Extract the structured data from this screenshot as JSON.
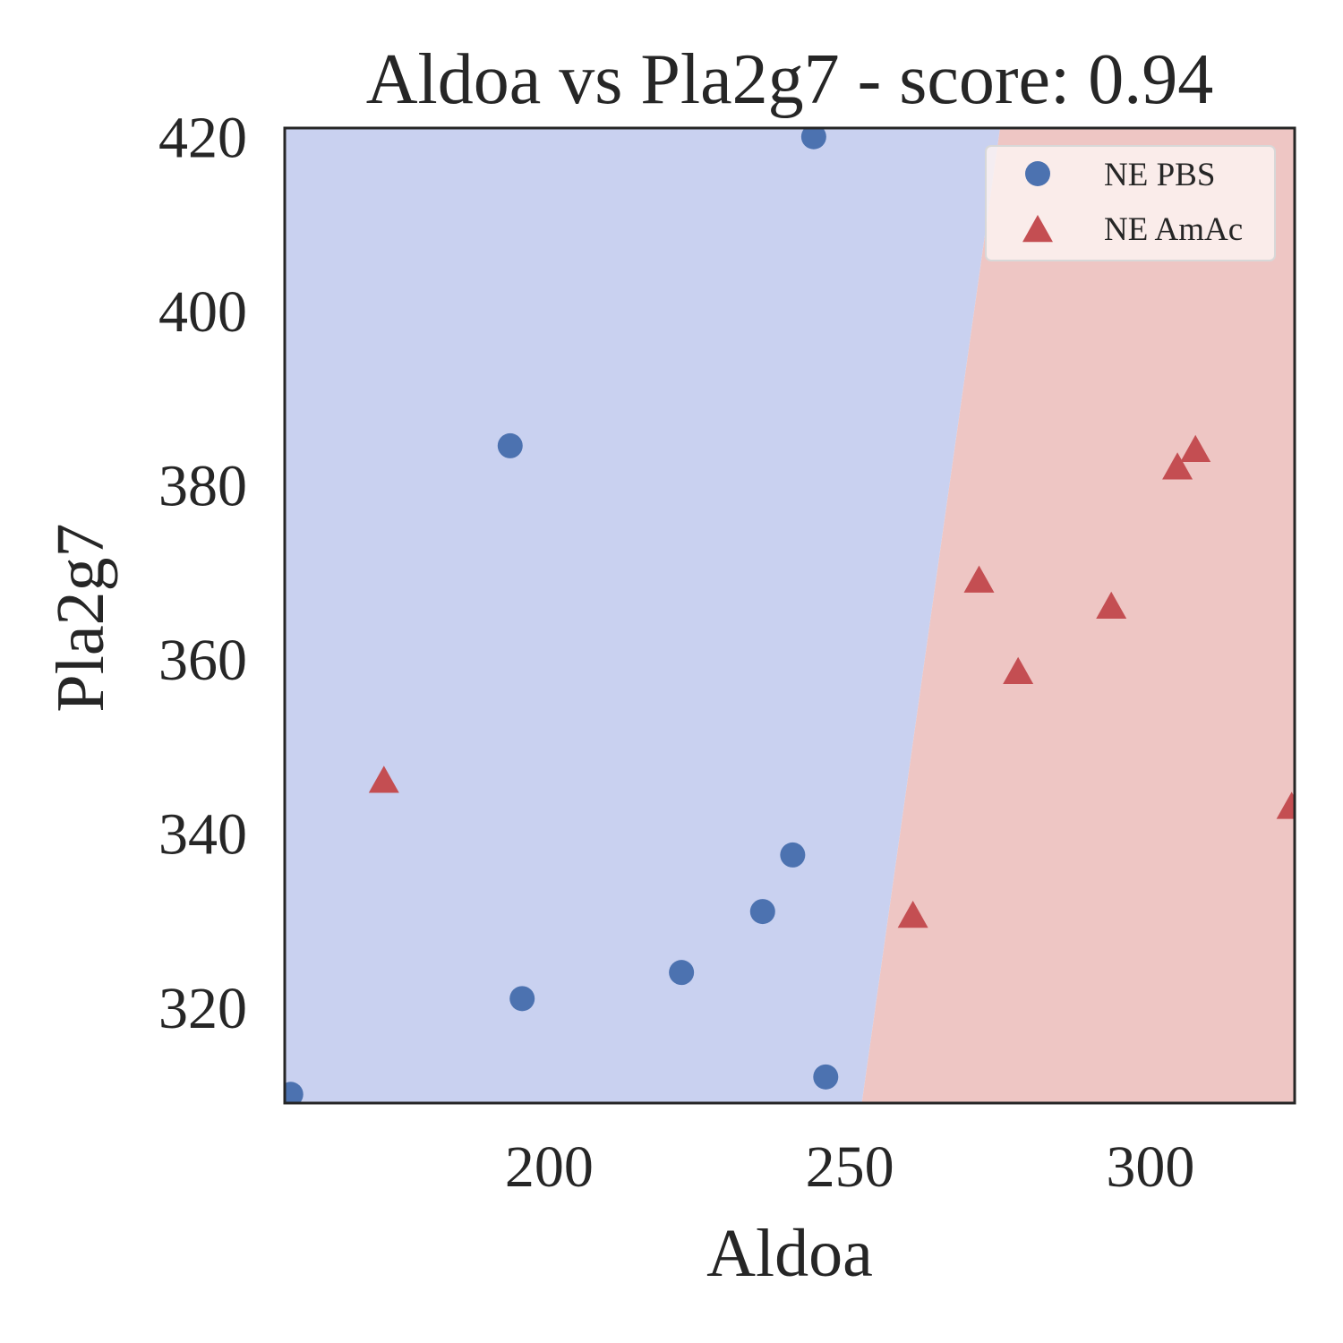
{
  "chart_data": {
    "type": "scatter",
    "title": "Aldoa vs Pla2g7 - score: 0.94",
    "xlabel": "Aldoa",
    "ylabel": "Pla2g7",
    "xlim": [
      156,
      324
    ],
    "ylim": [
      309,
      421
    ],
    "xticks": [
      200,
      250,
      300
    ],
    "yticks": [
      320,
      340,
      360,
      380,
      400,
      420
    ],
    "grid": false,
    "legend_position": "top-right",
    "decision_regions": [
      {
        "class": "NE PBS",
        "color": "#c9d1f0"
      },
      {
        "class": "NE AmAc",
        "color": "#eec6c4"
      }
    ],
    "decision_boundary": [
      [
        252,
        309
      ],
      [
        275,
        421
      ]
    ],
    "series": [
      {
        "name": "NE PBS",
        "marker": "circle",
        "color": "#4c72b0",
        "points": [
          [
            244,
            420
          ],
          [
            193.5,
            384.5
          ],
          [
            240.5,
            337.5
          ],
          [
            235.5,
            331
          ],
          [
            222,
            324
          ],
          [
            195.5,
            321
          ],
          [
            246,
            312
          ],
          [
            157,
            310
          ]
        ]
      },
      {
        "name": "NE AmAc",
        "marker": "triangle",
        "color": "#c44e52",
        "points": [
          [
            307.5,
            384
          ],
          [
            304.5,
            382
          ],
          [
            271.5,
            369
          ],
          [
            293.5,
            366
          ],
          [
            278,
            358.5
          ],
          [
            172.5,
            346
          ],
          [
            323.5,
            343
          ],
          [
            260.5,
            330.5
          ]
        ]
      }
    ]
  }
}
